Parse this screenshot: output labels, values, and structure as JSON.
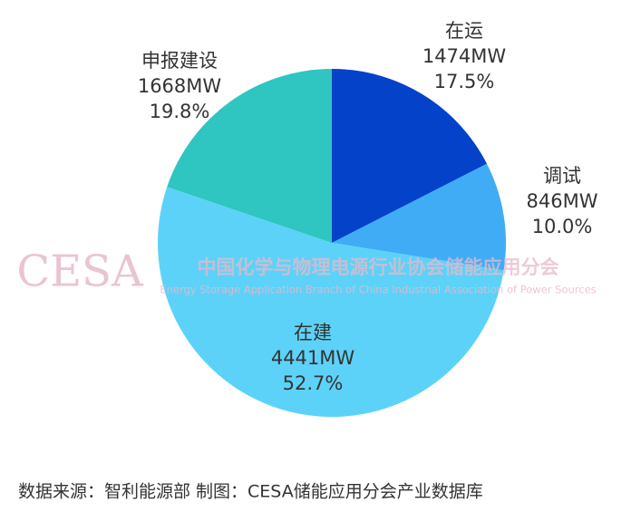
{
  "chart_data": {
    "type": "pie",
    "categories": [
      "在运",
      "调试",
      "在建",
      "申报建设"
    ],
    "values": [
      1474,
      846,
      4441,
      1668
    ],
    "value_labels": [
      "1474MW",
      "846MW",
      "4441MW",
      "1668MW"
    ],
    "percentages": [
      {
        "value": 17.5,
        "label": "17.5%"
      },
      {
        "value": 10.0,
        "label": "10.0%"
      },
      {
        "value": 52.7,
        "label": "52.7%"
      },
      {
        "value": 19.8,
        "label": "19.8%"
      }
    ],
    "colors": [
      "#0443c9",
      "#40acf6",
      "#5dd2f8",
      "#2fc5c0"
    ],
    "watermark": {
      "logo": "CESA",
      "name": "中国化学与物理电源行业协会储能应用分会",
      "english": "Energy Storage Application Branch of China Industrial Association of Power Sources"
    },
    "source": "数据来源：智利能源部  制图：CESA储能应用分会产业数据库"
  }
}
